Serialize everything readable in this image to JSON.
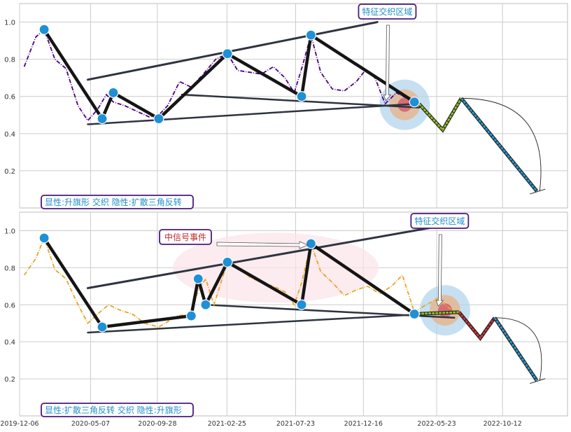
{
  "colors": {
    "plot_bg": "#ffffff",
    "grid": "#cccccc",
    "frame": "#bdbdbd",
    "top_series": "#4b0082",
    "bottom_series": "#e6a52a",
    "pattern_line": "#151515",
    "trend_line": "#2e3440",
    "point": "#1e90d6",
    "box_border": "#4b1a7a",
    "box_text": "#1f8fc9",
    "signal_text": "#c0282e",
    "forecast_green": "#8fbc2b",
    "forecast_red": "#c4353d",
    "forecast_blue": "#2b95c8",
    "highlight_blue": "#b3d6ee",
    "highlight_orange": "#e7b48a",
    "highlight_red": "#d46070",
    "pink_region": "#fbe3e8"
  },
  "chart_data": [
    {
      "type": "line",
      "panel": "top",
      "ylim": [
        0.0,
        1.1
      ],
      "yticks": [
        0.2,
        0.4,
        0.6,
        0.8,
        1.0
      ],
      "ytick_labels": [
        "0.2",
        "0.4",
        "0.6",
        "0.8",
        "1.0"
      ],
      "x_start": "2019-12-06",
      "x_end": "2023-03-01",
      "grid": true,
      "series": [
        {
          "style": "dash-dot",
          "x": [
            "2019-12-16",
            "2020-01-10",
            "2020-01-28",
            "2020-02-20",
            "2020-03-15",
            "2020-04-10",
            "2020-05-01",
            "2020-05-22",
            "2020-06-10",
            "2020-06-25",
            "2020-07-20",
            "2020-08-15",
            "2020-09-10",
            "2020-10-01",
            "2020-10-20",
            "2020-11-15",
            "2020-12-10",
            "2021-01-05",
            "2021-02-01",
            "2021-02-26",
            "2021-03-20",
            "2021-04-15",
            "2021-05-10",
            "2021-06-05",
            "2021-06-30",
            "2021-07-20",
            "2021-08-05",
            "2021-08-25",
            "2021-09-15",
            "2021-10-10",
            "2021-11-05",
            "2021-12-01",
            "2021-12-20",
            "2022-01-10",
            "2022-02-01",
            "2022-02-25",
            "2022-03-20",
            "2022-04-05"
          ],
          "values": [
            0.76,
            0.92,
            0.96,
            0.8,
            0.75,
            0.55,
            0.47,
            0.53,
            0.61,
            0.57,
            0.55,
            0.52,
            0.49,
            0.5,
            0.55,
            0.68,
            0.65,
            0.72,
            0.8,
            0.83,
            0.74,
            0.73,
            0.72,
            0.76,
            0.7,
            0.62,
            0.75,
            0.93,
            0.73,
            0.64,
            0.63,
            0.68,
            0.74,
            0.7,
            0.56,
            0.62,
            0.59,
            0.57
          ]
        }
      ],
      "pattern_points": {
        "x": [
          "2020-01-28",
          "2020-06-01",
          "2020-06-25",
          "2020-10-01",
          "2021-02-26",
          "2021-08-05",
          "2021-08-25",
          "2022-04-05"
        ],
        "values": [
          0.96,
          0.48,
          0.62,
          0.48,
          0.83,
          0.6,
          0.93,
          0.57
        ]
      },
      "trend_lines": [
        {
          "x": [
            "2020-05-01",
            "2022-04-05"
          ],
          "values": [
            0.45,
            0.56
          ]
        },
        {
          "x": [
            "2020-05-01",
            "2022-01-15"
          ],
          "values": [
            0.69,
            1.0
          ]
        },
        {
          "x": [
            "2020-11-20",
            "2022-04-15"
          ],
          "values": [
            0.61,
            0.54
          ]
        }
      ],
      "forecast": [
        {
          "color": "green",
          "x": [
            "2022-04-15",
            "2022-06-05",
            "2022-07-15"
          ],
          "values": [
            0.56,
            0.42,
            0.59
          ]
        },
        {
          "color": "blue",
          "x": [
            "2022-07-15",
            "2022-12-25"
          ],
          "values": [
            0.59,
            0.09
          ]
        }
      ],
      "feature_box_label": "特征交织区域",
      "pattern_label": "显性:升旗形 交织 隐性:扩散三角反转"
    },
    {
      "type": "line",
      "panel": "bottom",
      "ylim": [
        0.0,
        1.1
      ],
      "yticks": [
        0.2,
        0.4,
        0.6,
        0.8,
        1.0
      ],
      "ytick_labels": [
        "0.2",
        "0.4",
        "0.6",
        "0.8",
        "1.0"
      ],
      "x_start": "2019-12-06",
      "x_end": "2023-03-01",
      "x_tick_dates": [
        "2019-12-06",
        "2020-05-07",
        "2020-09-28",
        "2021-02-25",
        "2021-07-23",
        "2021-12-16",
        "2022-05-23",
        "2022-10-12"
      ],
      "x_tick_labels": [
        "2019-12-06",
        "2020-05-07",
        "2020-09-28",
        "2021-02-25",
        "2021-07-23",
        "2021-12-16",
        "2022-05-23",
        "2022-10-12"
      ],
      "grid": true,
      "series": [
        {
          "style": "dash-dot",
          "x": [
            "2019-12-16",
            "2020-01-10",
            "2020-01-28",
            "2020-02-20",
            "2020-03-15",
            "2020-04-10",
            "2020-05-01",
            "2020-05-22",
            "2020-06-15",
            "2020-07-10",
            "2020-08-05",
            "2020-09-01",
            "2020-10-01",
            "2020-11-10",
            "2020-12-10",
            "2020-12-25",
            "2021-01-10",
            "2021-01-28",
            "2021-02-26",
            "2021-03-20",
            "2021-04-15",
            "2021-05-10",
            "2021-06-05",
            "2021-06-30",
            "2021-07-20",
            "2021-08-05",
            "2021-08-25",
            "2021-09-15",
            "2021-10-10",
            "2021-11-05",
            "2021-12-01",
            "2021-12-25",
            "2022-01-20",
            "2022-02-15",
            "2022-03-10",
            "2022-04-05",
            "2022-04-30",
            "2022-05-25",
            "2022-06-20",
            "2022-07-10"
          ],
          "values": [
            0.76,
            0.85,
            0.96,
            0.79,
            0.74,
            0.6,
            0.5,
            0.55,
            0.6,
            0.57,
            0.55,
            0.5,
            0.48,
            0.54,
            0.55,
            0.68,
            0.74,
            0.6,
            0.83,
            0.8,
            0.75,
            0.72,
            0.7,
            0.67,
            0.6,
            0.72,
            0.93,
            0.78,
            0.72,
            0.65,
            0.68,
            0.7,
            0.66,
            0.7,
            0.76,
            0.56,
            0.6,
            0.63,
            0.58,
            0.55
          ]
        }
      ],
      "pattern_points": {
        "x": [
          "2020-01-28",
          "2020-06-01",
          "2020-12-10",
          "2020-12-25",
          "2021-01-10",
          "2021-02-26",
          "2021-08-05",
          "2021-08-25",
          "2022-04-05"
        ],
        "values": [
          0.96,
          0.48,
          0.54,
          0.74,
          0.6,
          0.83,
          0.6,
          0.93,
          0.55
        ]
      },
      "trend_lines": [
        {
          "x": [
            "2020-05-01",
            "2022-07-10"
          ],
          "values": [
            0.45,
            0.56
          ]
        },
        {
          "x": [
            "2020-05-01",
            "2022-05-20"
          ],
          "values": [
            0.69,
            1.02
          ]
        },
        {
          "x": [
            "2021-01-10",
            "2022-06-30"
          ],
          "values": [
            0.6,
            0.53
          ]
        }
      ],
      "forecast": [
        {
          "color": "green",
          "x": [
            "2022-04-05",
            "2022-07-10"
          ],
          "values": [
            0.55,
            0.56
          ]
        },
        {
          "color": "red",
          "x": [
            "2022-07-10",
            "2022-08-25",
            "2022-09-25"
          ],
          "values": [
            0.56,
            0.42,
            0.53
          ]
        },
        {
          "color": "blue",
          "x": [
            "2022-09-25",
            "2022-12-25"
          ],
          "values": [
            0.53,
            0.19
          ]
        }
      ],
      "feature_box_label": "特征交织区域",
      "signal_label": "中信号事件",
      "pattern_label": "显性:扩散三角反转 交织 隐性:升旗形"
    }
  ]
}
